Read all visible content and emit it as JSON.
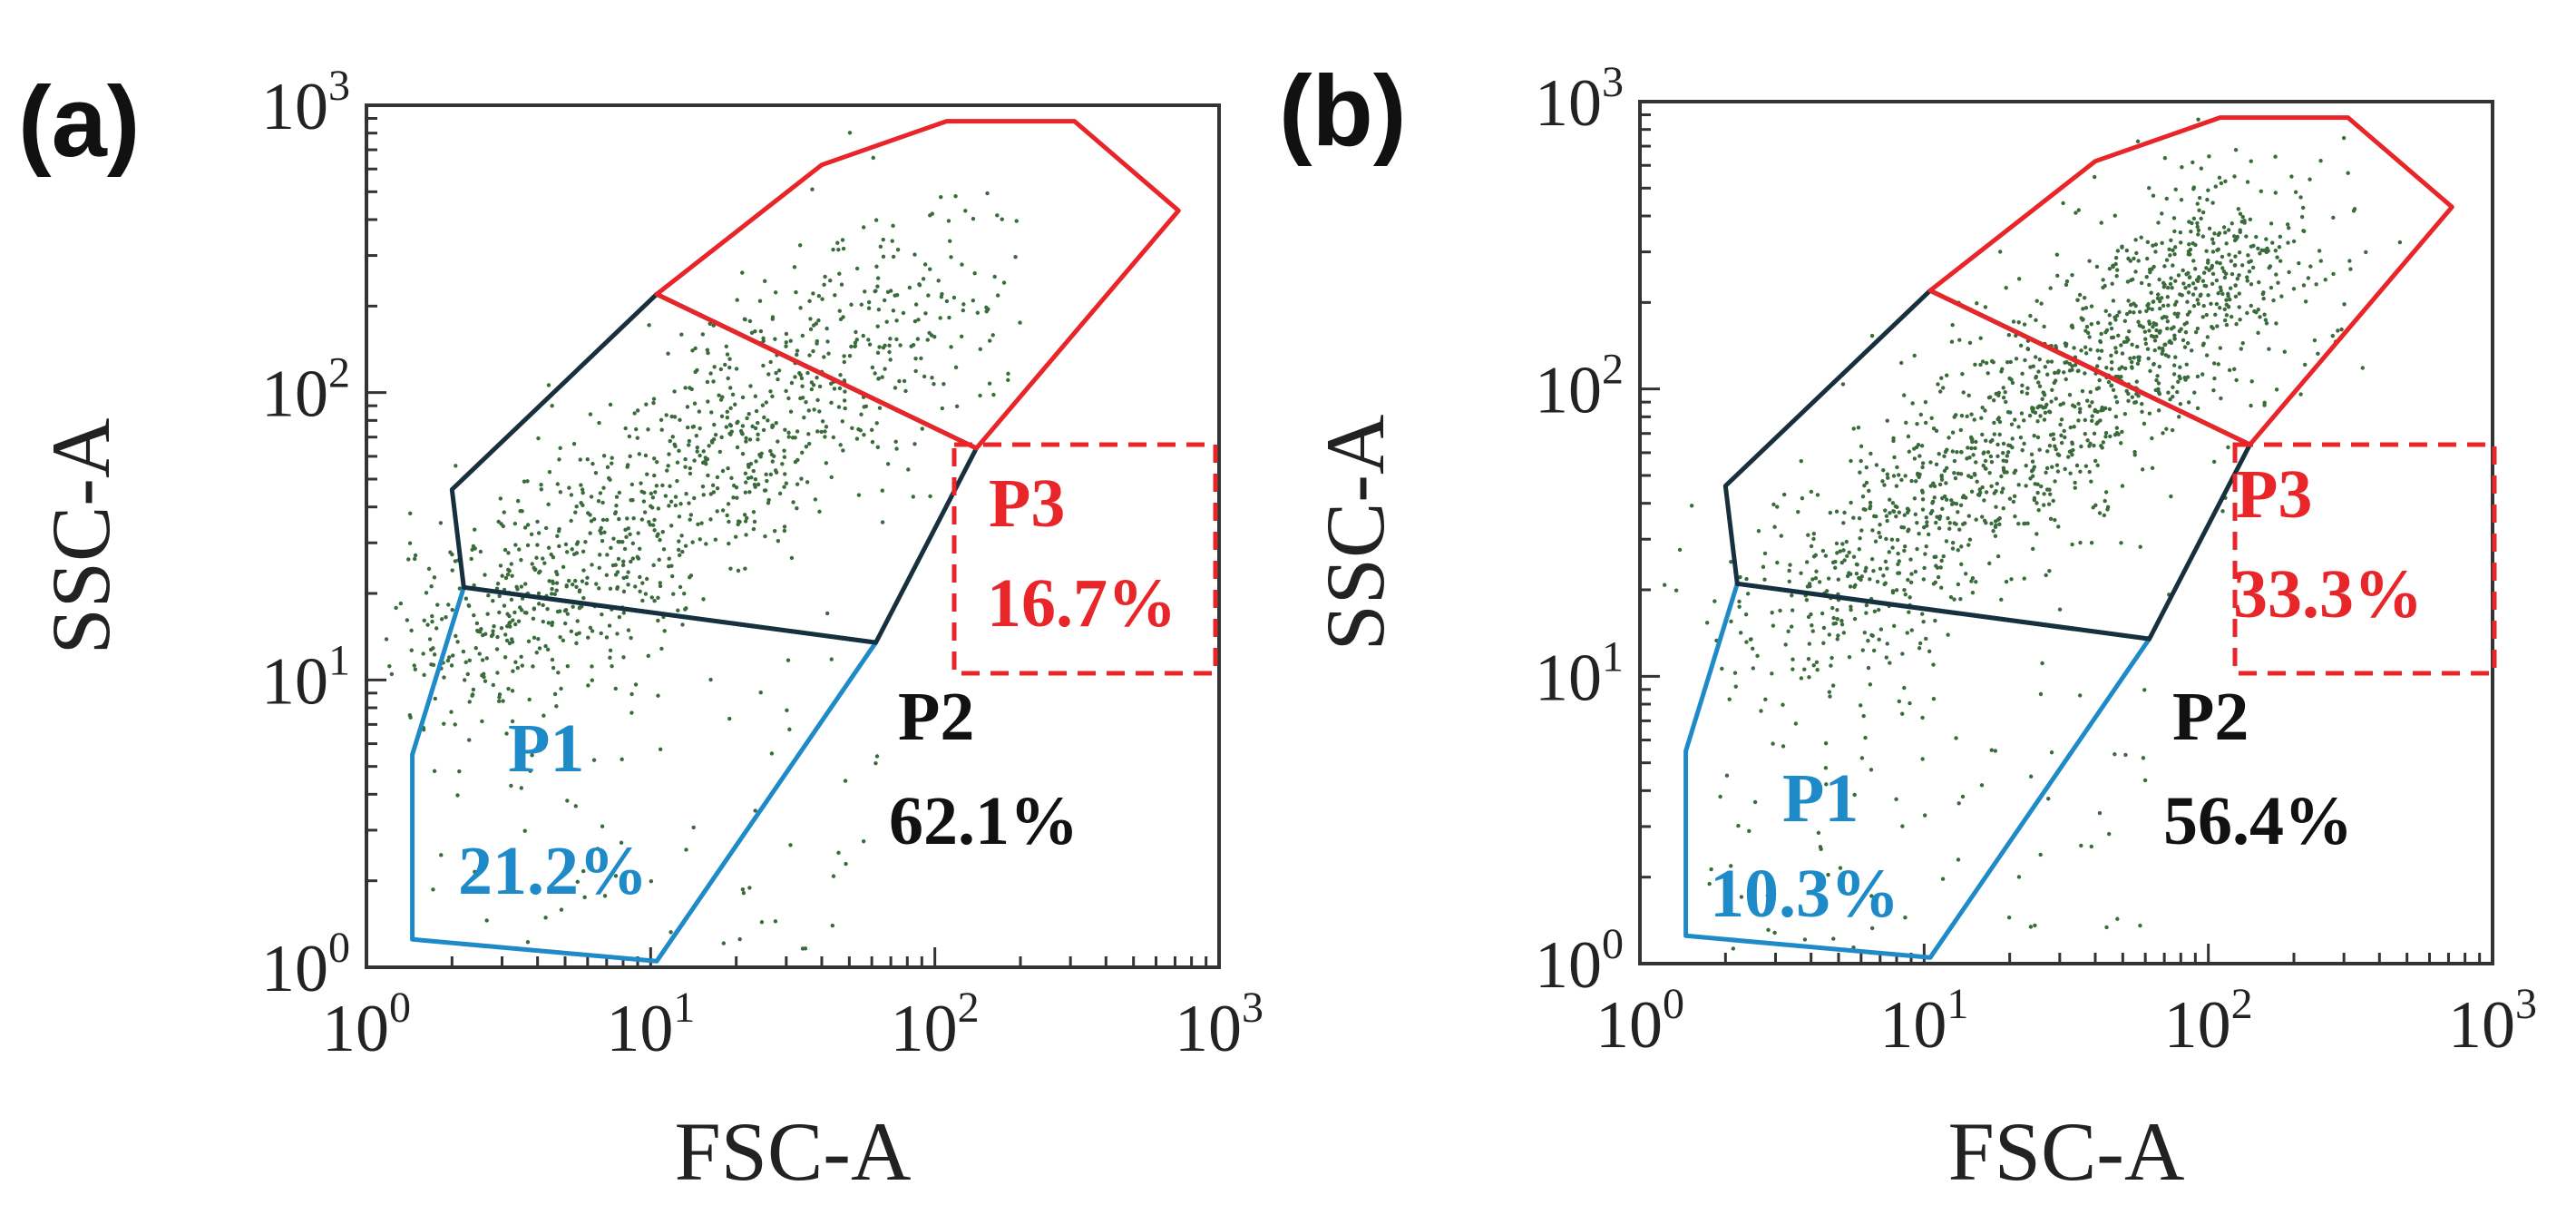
{
  "chart_data": [
    {
      "type": "scatter",
      "panel_label": "(a)",
      "xlabel": "FSC-A",
      "ylabel": "SSC-A",
      "x_scale": "log",
      "y_scale": "log",
      "xlim": [
        1,
        1000
      ],
      "ylim": [
        1,
        1000
      ],
      "x_ticks": [
        {
          "base": "10",
          "exp": "0"
        },
        {
          "base": "10",
          "exp": "1"
        },
        {
          "base": "10",
          "exp": "2"
        },
        {
          "base": "10",
          "exp": "3"
        }
      ],
      "y_ticks": [
        {
          "base": "10",
          "exp": "0"
        },
        {
          "base": "10",
          "exp": "1"
        },
        {
          "base": "10",
          "exp": "2"
        },
        {
          "base": "10",
          "exp": "3"
        }
      ],
      "point_color": "#3a6b3a",
      "points_approx_count": 1100,
      "gates": [
        {
          "name": "P1",
          "percent": "21.2%",
          "color": "#1f8ac8",
          "vertices": [
            [
              1.45,
              1.25
            ],
            [
              10.5,
              1.05
            ],
            [
              62,
              13.5
            ],
            [
              2.2,
              21
            ],
            [
              1.45,
              5.5
            ]
          ]
        },
        {
          "name": "P2",
          "percent": "62.1%",
          "color": "#17303d",
          "vertices": [
            [
              2.2,
              21
            ],
            [
              62,
              13.5
            ],
            [
              140,
              64
            ],
            [
              10.5,
              220
            ],
            [
              2,
              46
            ]
          ]
        },
        {
          "name": "P3",
          "percent": "16.7%",
          "color": "#e8262a",
          "vertices": [
            [
              10.5,
              220
            ],
            [
              140,
              64
            ],
            [
              720,
              430
            ],
            [
              310,
              880
            ],
            [
              110,
              880
            ],
            [
              40,
              620
            ]
          ]
        }
      ],
      "annotations": [
        {
          "text": "P1",
          "color": "#1f8ac8"
        },
        {
          "text": "21.2%",
          "color": "#1f8ac8"
        },
        {
          "text": "P2",
          "color": "#111111"
        },
        {
          "text": "62.1%",
          "color": "#111111"
        },
        {
          "text": "P3",
          "color": "#e8262a"
        },
        {
          "text": "16.7%",
          "color": "#e8262a"
        }
      ]
    },
    {
      "type": "scatter",
      "panel_label": "(b)",
      "xlabel": "FSC-A",
      "ylabel": "SSC-A",
      "x_scale": "log",
      "y_scale": "log",
      "xlim": [
        1,
        1000
      ],
      "ylim": [
        1,
        1000
      ],
      "x_ticks": [
        {
          "base": "10",
          "exp": "0"
        },
        {
          "base": "10",
          "exp": "1"
        },
        {
          "base": "10",
          "exp": "2"
        },
        {
          "base": "10",
          "exp": "3"
        }
      ],
      "y_ticks": [
        {
          "base": "10",
          "exp": "0"
        },
        {
          "base": "10",
          "exp": "1"
        },
        {
          "base": "10",
          "exp": "2"
        },
        {
          "base": "10",
          "exp": "3"
        }
      ],
      "point_color": "#3a6b3a",
      "points_approx_count": 1500,
      "gates": [
        {
          "name": "P1",
          "percent": "10.3%",
          "color": "#1f8ac8",
          "vertices": [
            [
              1.45,
              1.25
            ],
            [
              10.5,
              1.05
            ],
            [
              62,
              13.5
            ],
            [
              2.2,
              21
            ],
            [
              1.45,
              5.5
            ]
          ]
        },
        {
          "name": "P2",
          "percent": "56.4%",
          "color": "#17303d",
          "vertices": [
            [
              2.2,
              21
            ],
            [
              62,
              13.5
            ],
            [
              140,
              64
            ],
            [
              10.5,
              220
            ],
            [
              2,
              46
            ]
          ]
        },
        {
          "name": "P3",
          "percent": "33.3%",
          "color": "#e8262a",
          "vertices": [
            [
              10.5,
              220
            ],
            [
              140,
              64
            ],
            [
              720,
              430
            ],
            [
              310,
              880
            ],
            [
              110,
              880
            ],
            [
              40,
              620
            ]
          ]
        }
      ],
      "annotations": [
        {
          "text": "P1",
          "color": "#1f8ac8"
        },
        {
          "text": "10.3%",
          "color": "#1f8ac8"
        },
        {
          "text": "P2",
          "color": "#111111"
        },
        {
          "text": "56.4%",
          "color": "#111111"
        },
        {
          "text": "P3",
          "color": "#e8262a"
        },
        {
          "text": "33.3%",
          "color": "#e8262a"
        }
      ]
    }
  ]
}
